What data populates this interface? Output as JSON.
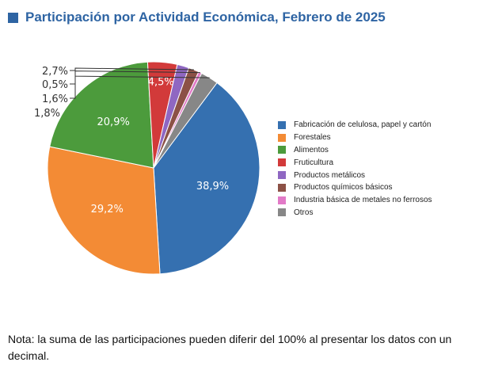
{
  "title": "Participación por Actividad Económica, Febrero de 2025",
  "note": "Nota: la suma de las participaciones pueden diferir del 100% al presentar los datos con un decimal.",
  "chart_data": {
    "type": "pie",
    "slices": [
      {
        "name": "Fabricación de celulosa, papel y cartón",
        "value": 38.9,
        "label": "38,9%",
        "color": "#3570b0"
      },
      {
        "name": "Forestales",
        "value": 29.2,
        "label": "29,2%",
        "color": "#f38b35"
      },
      {
        "name": "Alimentos",
        "value": 20.9,
        "label": "20,9%",
        "color": "#4c9b3c"
      },
      {
        "name": "Fruticultura",
        "value": 4.5,
        "label": "4,5%",
        "color": "#d23a3a"
      },
      {
        "name": "Productos metálicos",
        "value": 1.8,
        "label": "1,8%",
        "color": "#8f67c2"
      },
      {
        "name": "Productos químicos básicos",
        "value": 1.6,
        "label": "1,6%",
        "color": "#8c5146"
      },
      {
        "name": "Industria básica de metales no ferrosos",
        "value": 0.5,
        "label": "0,5%",
        "color": "#e27ac7"
      },
      {
        "name": "Otros",
        "value": 2.7,
        "label": "2,7%",
        "color": "#878787"
      }
    ]
  }
}
